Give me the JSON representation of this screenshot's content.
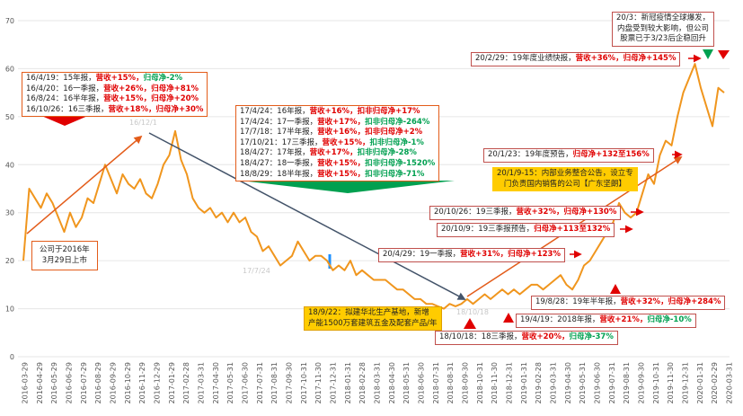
{
  "chart_data": {
    "type": "line",
    "title": "",
    "xlabel": "",
    "ylabel": "",
    "ylim": [
      0,
      70
    ],
    "yticks": [
      0,
      10,
      20,
      30,
      40,
      50,
      60,
      70
    ],
    "xticks": [
      "2016-03-29",
      "2016-04-29",
      "2016-05-29",
      "2016-06-29",
      "2016-07-29",
      "2016-08-29",
      "2016-09-29",
      "2016-10-29",
      "2016-11-29",
      "2016-12-29",
      "2017-01-29",
      "2017-02-28",
      "2017-03-31",
      "2017-04-30",
      "2017-05-31",
      "2017-06-30",
      "2017-07-31",
      "2017-08-31",
      "2017-09-30",
      "2017-10-31",
      "2017-11-30",
      "2017-12-31",
      "2018-01-31",
      "2018-02-28",
      "2018-03-31",
      "2018-04-30",
      "2018-05-31",
      "2018-06-30",
      "2018-07-31",
      "2018-08-31",
      "2018-09-30",
      "2018-10-31",
      "2018-11-30",
      "2018-12-31",
      "2019-01-31",
      "2019-02-28",
      "2019-03-31",
      "2019-04-30",
      "2019-05-31",
      "2019-06-30",
      "2019-07-31",
      "2019-08-31",
      "2019-09-30",
      "2019-10-31",
      "2019-11-30",
      "2019-12-31",
      "2020-01-31",
      "2020-02-29",
      "2020-03-31"
    ],
    "series": [
      {
        "name": "股价",
        "color": "#f0961e",
        "values": [
          20,
          35,
          33,
          31,
          34,
          32,
          29,
          26,
          30,
          27,
          29,
          33,
          32,
          36,
          40,
          37,
          34,
          38,
          36,
          35,
          37,
          34,
          33,
          36,
          40,
          42,
          47,
          41,
          38,
          33,
          31,
          30,
          31,
          29,
          30,
          28,
          30,
          28,
          29,
          26,
          25,
          22,
          23,
          21,
          19,
          20,
          21,
          24,
          22,
          20,
          21,
          21,
          20,
          18,
          19,
          18,
          20,
          17,
          18,
          17,
          16,
          16,
          16,
          15,
          14,
          14,
          13,
          12,
          12,
          11,
          11,
          10.5,
          10,
          11,
          10.5,
          11,
          12,
          11,
          12,
          13,
          12,
          13,
          14,
          13,
          14,
          13,
          14,
          15,
          15,
          14,
          15,
          16,
          17,
          15,
          14,
          16,
          19,
          20,
          22,
          24,
          26,
          28,
          32,
          30,
          29,
          30,
          34,
          38,
          36,
          42,
          45,
          44,
          50,
          55,
          58,
          61,
          56,
          52,
          48,
          56,
          55
        ]
      }
    ],
    "watermarks": [
      "16/12/1",
      "17/7/24",
      "18/10/18"
    ],
    "callouts": {
      "start": {
        "lines": [
          "公司于2016年",
          "3月29日上市"
        ]
      },
      "a2016": [
        {
          "date": "16/4/19：",
          "pre": "15年报，",
          "rev": "营收+15%，",
          "np": "归母净-2%",
          "np_color": "green"
        },
        {
          "date": "16/4/20：",
          "pre": "16一季报，",
          "rev": "营收+26%，",
          "np": "归母净+81%",
          "np_color": "red"
        },
        {
          "date": "16/8/24：",
          "pre": "16半年报，",
          "rev": "营收+15%，",
          "np": "归母净+20%",
          "np_color": "red"
        },
        {
          "date": "16/10/26：",
          "pre": "16三季报，",
          "rev": "营收+18%，",
          "np": "归母净+30%",
          "np_color": "red"
        }
      ],
      "a2017": [
        {
          "date": "17/4/24：",
          "pre": "16年报，",
          "rev": "营收+16%，",
          "np": "扣非归母净+17%",
          "np_color": "red"
        },
        {
          "date": "17/4/24：",
          "pre": "17一季报，",
          "rev": "营收+17%，",
          "np": "扣非归母净-264%",
          "np_color": "green"
        },
        {
          "date": "17/7/18：",
          "pre": "17半年报，",
          "rev": "营收+16%，",
          "np": "扣非归母净+2%",
          "np_color": "red"
        },
        {
          "date": "17/10/21：",
          "pre": "17三季报，",
          "rev": "营收+15%，",
          "np": "扣非归母净-1%",
          "np_color": "green"
        },
        {
          "date": "18/4/27：",
          "pre": "17年报，",
          "rev": "营收+17%，",
          "np": "扣非归母净-28%",
          "np_color": "green"
        },
        {
          "date": "18/4/27：",
          "pre": "18一季报，",
          "rev": "营收+15%，",
          "np": "扣非归母净-1520%",
          "np_color": "green"
        },
        {
          "date": "18/8/29：",
          "pre": "18半年报，",
          "rev": "营收+15%，",
          "np": "扣非归母净-71%",
          "np_color": "green"
        }
      ],
      "b180922": {
        "lines": [
          "18/9/22：拟建华北生产基地，新增",
          "产能1500万套建筑五金及配套产品/年"
        ]
      },
      "b181018": {
        "date": "18/10/18：",
        "pre": "18三季报，",
        "rev": "营收+20%，",
        "np": "归母净-37%",
        "np_color": "green"
      },
      "b190419": {
        "date": "19/4/19：",
        "pre": "2018年报，",
        "rev": "营收+21%，",
        "np": "归母净-10%",
        "np_color": "green"
      },
      "b190828": {
        "date": "19/8/28：",
        "pre": "19年半年报，",
        "rev": "营收+32%，",
        "np": "归母净+284%",
        "np_color": "red"
      },
      "b200429": {
        "date": "20/4/29：",
        "pre": "19一季报，",
        "rev": "营收+31%，",
        "np": "归母净+123%",
        "np_color": "red"
      },
      "b191009": {
        "date": "20/10/9：",
        "pre": "19三季报预告，",
        "rev": "",
        "np": "归母净+113至132%",
        "np_color": "red"
      },
      "b191026": {
        "date": "20/10/26：",
        "pre": "19三季报，",
        "rev": "营收+32%，",
        "np": "归母净+130%",
        "np_color": "red"
      },
      "b200115": {
        "lines": [
          "20/1/9-15：内部业务整合公告，设立专",
          "门负责国内销售的公司【广东坚朗】"
        ]
      },
      "b200123": {
        "date": "20/1/23：",
        "pre": "19年度预告，",
        "rev": "",
        "np": "归母净+132至156%",
        "np_color": "red"
      },
      "b200229": {
        "date": "20/2/29：",
        "pre": "19年度业绩快报，",
        "rev": "营收+36%，",
        "np": "归母净+145%",
        "np_color": "red"
      },
      "b200303": {
        "lines": [
          "20/3：新冠疫情全球爆发，",
          "内盘受到较大影响，但公司",
          "股票已于3/23后企稳回升"
        ]
      }
    }
  }
}
